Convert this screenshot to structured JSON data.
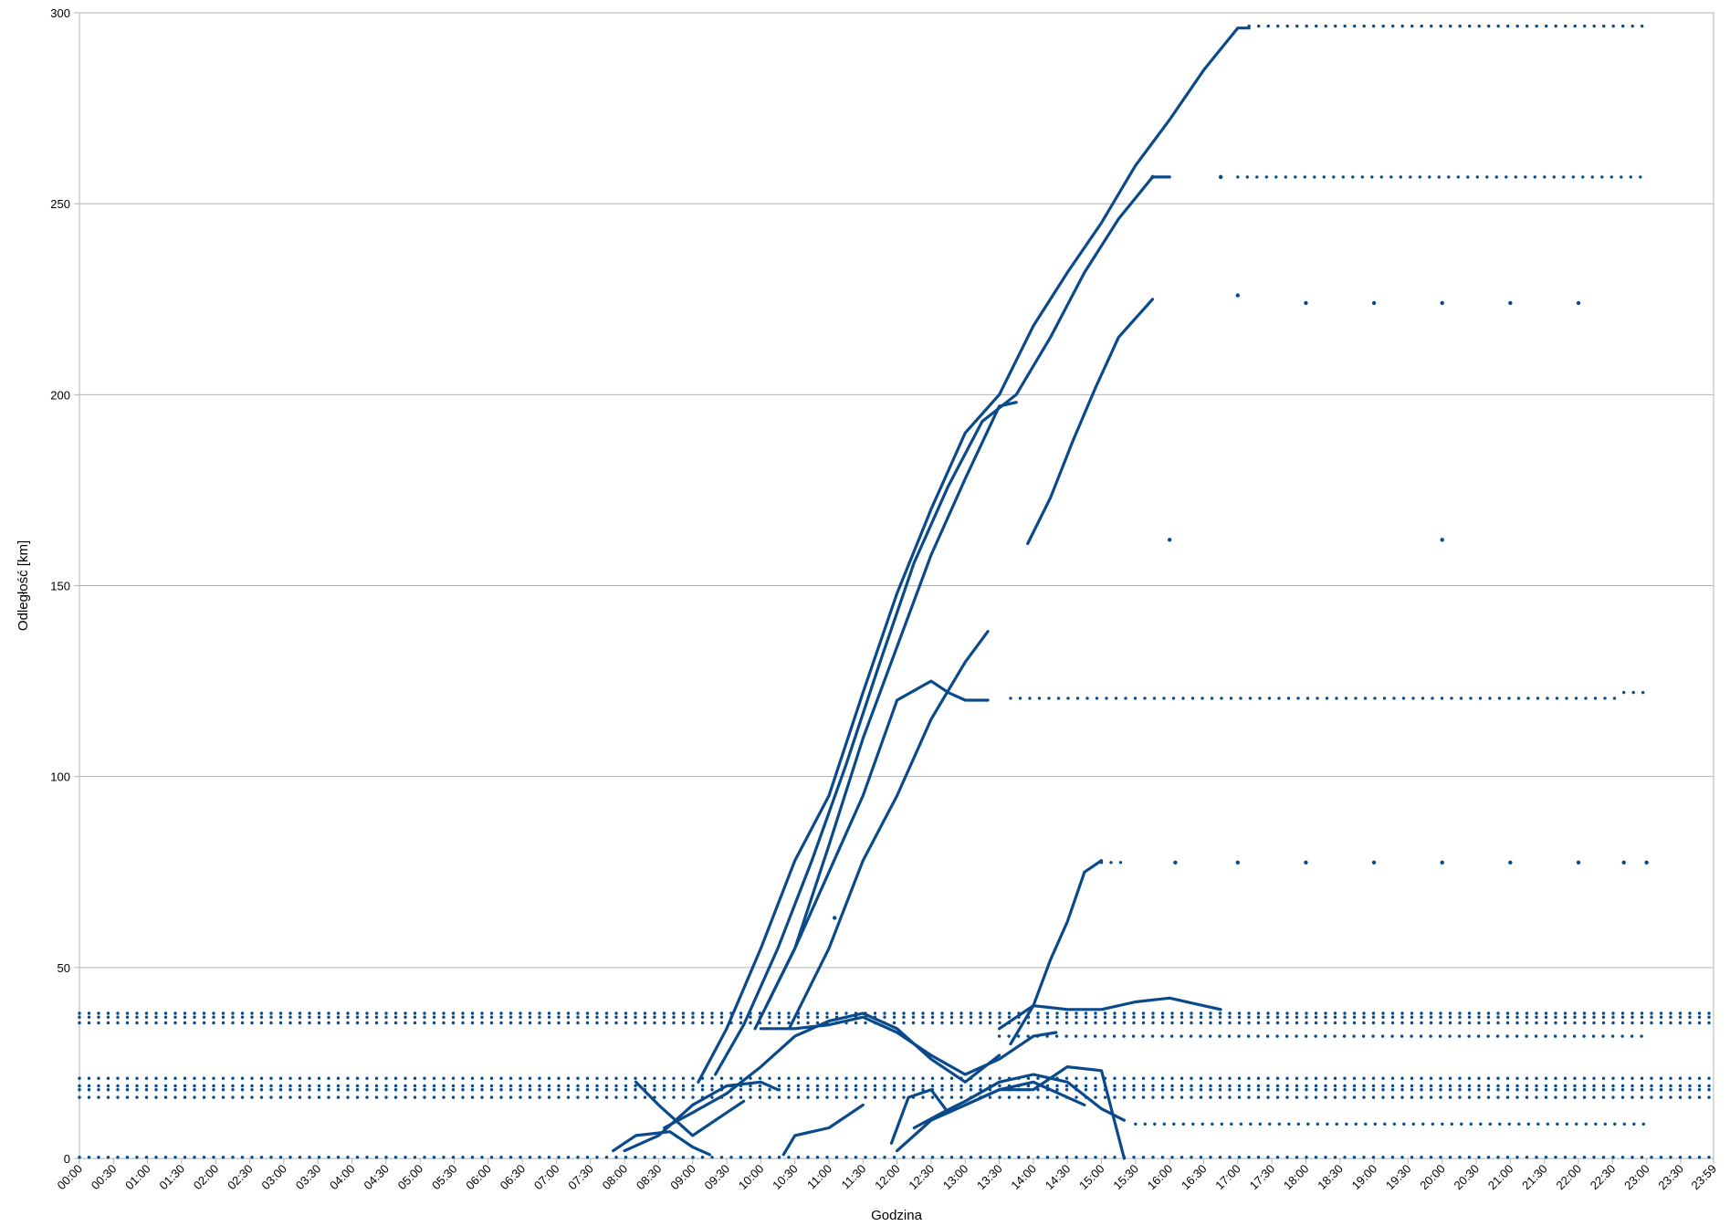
{
  "chart_data": {
    "type": "scatter",
    "xlabel": "Godzina",
    "ylabel": "Odległość [km]",
    "xlim": [
      0,
      1439
    ],
    "ylim": [
      0,
      300
    ],
    "y_ticks": [
      0,
      50,
      100,
      150,
      200,
      250,
      300
    ],
    "x_tick_labels": [
      "00:00",
      "00:30",
      "01:00",
      "01:30",
      "02:00",
      "02:30",
      "03:00",
      "03:30",
      "04:00",
      "04:30",
      "05:00",
      "05:30",
      "06:00",
      "06:30",
      "07:00",
      "07:30",
      "08:00",
      "08:30",
      "09:00",
      "09:30",
      "10:00",
      "10:30",
      "11:00",
      "11:30",
      "12:00",
      "12:30",
      "13:00",
      "13:30",
      "14:00",
      "14:30",
      "15:00",
      "15:30",
      "16:00",
      "16:30",
      "17:00",
      "17:30",
      "18:00",
      "18:30",
      "19:00",
      "19:30",
      "20:00",
      "20:30",
      "21:00",
      "21:30",
      "22:00",
      "22:30",
      "23:00",
      "23:30",
      "23:59"
    ],
    "grid": true,
    "legend": "none",
    "color": "#0a4a8a",
    "series": [
      {
        "points": [
          [
            "09:05",
            20
          ],
          [
            "09:30",
            34
          ],
          [
            "10:00",
            55
          ],
          [
            "10:30",
            78
          ],
          [
            "11:00",
            95
          ],
          [
            "11:30",
            122
          ],
          [
            "12:00",
            148
          ],
          [
            "12:30",
            170
          ],
          [
            "13:00",
            190
          ],
          [
            "13:30",
            200
          ],
          [
            "14:00",
            218
          ],
          [
            "14:30",
            232
          ],
          [
            "15:00",
            245
          ],
          [
            "15:30",
            260
          ],
          [
            "16:00",
            272
          ],
          [
            "16:30",
            285
          ],
          [
            "17:00",
            296
          ],
          [
            "17:10",
            296
          ]
        ]
      },
      {
        "points": [
          [
            "09:20",
            22
          ],
          [
            "09:45",
            35
          ],
          [
            "10:15",
            55
          ],
          [
            "10:45",
            78
          ],
          [
            "11:15",
            103
          ],
          [
            "11:45",
            130
          ],
          [
            "12:15",
            156
          ],
          [
            "12:45",
            176
          ],
          [
            "13:15",
            193
          ],
          [
            "13:45",
            200
          ],
          [
            "14:15",
            215
          ],
          [
            "14:45",
            232
          ],
          [
            "15:15",
            246
          ],
          [
            "15:45",
            257
          ],
          [
            "16:00",
            257
          ]
        ]
      },
      {
        "points": [
          [
            "09:55",
            34
          ],
          [
            "10:30",
            55
          ],
          [
            "11:00",
            82
          ],
          [
            "11:30",
            110
          ],
          [
            "12:00",
            134
          ],
          [
            "12:30",
            158
          ],
          [
            "13:00",
            178
          ],
          [
            "13:30",
            197
          ],
          [
            "13:45",
            198
          ]
        ]
      },
      {
        "points": [
          [
            "10:05",
            40
          ],
          [
            "10:30",
            55
          ],
          [
            "11:00",
            75
          ],
          [
            "11:30",
            95
          ],
          [
            "12:00",
            120
          ],
          [
            "12:30",
            125
          ],
          [
            "12:45",
            122
          ],
          [
            "13:00",
            120
          ],
          [
            "13:20",
            120
          ]
        ]
      },
      {
        "points": [
          [
            "10:25",
            34
          ],
          [
            "11:00",
            55
          ],
          [
            "11:30",
            78
          ],
          [
            "12:00",
            95
          ],
          [
            "12:30",
            115
          ],
          [
            "13:00",
            130
          ],
          [
            "13:20",
            138
          ]
        ]
      },
      {
        "points": [
          [
            "13:55",
            161
          ],
          [
            "14:15",
            173
          ],
          [
            "14:35",
            188
          ],
          [
            "14:55",
            202
          ],
          [
            "15:15",
            215
          ],
          [
            "15:30",
            220
          ],
          [
            "15:45",
            225
          ]
        ]
      },
      {
        "points": [
          [
            "13:40",
            30
          ],
          [
            "14:00",
            40
          ],
          [
            "14:15",
            52
          ],
          [
            "14:30",
            62
          ],
          [
            "14:45",
            75
          ],
          [
            "15:00",
            78
          ]
        ]
      },
      {
        "points": [
          [
            "08:35",
            8
          ],
          [
            "09:00",
            12
          ],
          [
            "09:30",
            17
          ],
          [
            "10:00",
            24
          ],
          [
            "10:30",
            32
          ],
          [
            "11:00",
            36
          ],
          [
            "11:30",
            38
          ],
          [
            "12:00",
            34
          ],
          [
            "12:30",
            26
          ],
          [
            "13:00",
            20
          ],
          [
            "13:30",
            27
          ]
        ]
      },
      {
        "points": [
          [
            "10:00",
            34
          ],
          [
            "10:30",
            34
          ],
          [
            "11:00",
            35
          ],
          [
            "11:30",
            37
          ],
          [
            "12:00",
            33
          ],
          [
            "12:30",
            27
          ],
          [
            "13:00",
            22
          ],
          [
            "13:30",
            26
          ],
          [
            "14:00",
            32
          ],
          [
            "14:20",
            33
          ]
        ]
      },
      {
        "points": [
          [
            "13:30",
            34
          ],
          [
            "14:00",
            40
          ],
          [
            "14:30",
            39
          ],
          [
            "15:00",
            39
          ],
          [
            "15:30",
            41
          ],
          [
            "16:00",
            42
          ],
          [
            "16:30",
            40
          ],
          [
            "16:45",
            39
          ]
        ]
      },
      {
        "points": [
          [
            "08:00",
            2
          ],
          [
            "08:30",
            6
          ],
          [
            "09:00",
            14
          ],
          [
            "09:30",
            19
          ],
          [
            "10:00",
            20
          ],
          [
            "10:15",
            18
          ]
        ]
      },
      {
        "points": [
          [
            "07:50",
            2
          ],
          [
            "08:10",
            6
          ],
          [
            "08:40",
            7
          ],
          [
            "09:00",
            3
          ],
          [
            "09:15",
            1
          ]
        ]
      },
      {
        "points": [
          [
            "11:55",
            4
          ],
          [
            "12:10",
            16
          ],
          [
            "12:30",
            18
          ],
          [
            "12:45",
            12
          ],
          [
            "13:00",
            14
          ],
          [
            "13:30",
            18
          ],
          [
            "14:00",
            20
          ],
          [
            "14:30",
            16
          ],
          [
            "14:45",
            14
          ]
        ]
      },
      {
        "points": [
          [
            "12:15",
            8
          ],
          [
            "12:40",
            12
          ],
          [
            "13:00",
            15
          ],
          [
            "13:30",
            20
          ],
          [
            "14:00",
            22
          ],
          [
            "14:30",
            20
          ],
          [
            "15:00",
            13
          ],
          [
            "15:20",
            10
          ]
        ]
      },
      {
        "points": [
          [
            "12:00",
            2
          ],
          [
            "12:30",
            10
          ],
          [
            "13:00",
            14
          ],
          [
            "13:30",
            18
          ],
          [
            "14:00",
            18
          ],
          [
            "14:30",
            24
          ],
          [
            "15:00",
            23
          ],
          [
            "15:20",
            0
          ]
        ]
      },
      {
        "points": [
          [
            "08:10",
            20
          ],
          [
            "08:30",
            14
          ],
          [
            "09:00",
            6
          ],
          [
            "09:30",
            12
          ],
          [
            "09:45",
            15
          ]
        ]
      },
      {
        "points": [
          [
            "10:20",
            1
          ],
          [
            "10:30",
            6
          ],
          [
            "11:00",
            8
          ],
          [
            "11:20",
            12
          ],
          [
            "11:30",
            14
          ]
        ]
      }
    ],
    "dotted_series": [
      {
        "y": 38,
        "from": "00:00",
        "to": "23:59"
      },
      {
        "y": 37,
        "from": "00:00",
        "to": "23:59"
      },
      {
        "y": 35.5,
        "from": "00:00",
        "to": "23:59"
      },
      {
        "y": 21,
        "from": "00:00",
        "to": "23:59"
      },
      {
        "y": 19,
        "from": "00:00",
        "to": "23:59"
      },
      {
        "y": 18,
        "from": "00:00",
        "to": "23:59"
      },
      {
        "y": 16,
        "from": "00:00",
        "to": "23:59"
      },
      {
        "y": 0.3,
        "from": "00:00",
        "to": "23:59"
      },
      {
        "y": 32,
        "from": "13:30",
        "to": "23:00"
      },
      {
        "y": 9,
        "from": "15:30",
        "to": "23:00"
      },
      {
        "y": 120.5,
        "from": "13:40",
        "to": "22:40"
      },
      {
        "y": 122,
        "from": "22:40",
        "to": "23:00"
      },
      {
        "y": 296.5,
        "from": "17:10",
        "to": "23:00"
      },
      {
        "y": 257,
        "from": "17:00",
        "to": "23:00"
      },
      {
        "y": 77.5,
        "from": "15:00",
        "to": "15:20"
      }
    ],
    "isolated_points": [
      [
        "11:05",
        63
      ],
      [
        "16:00",
        162
      ],
      [
        "20:00",
        162
      ],
      [
        "17:00",
        226
      ],
      [
        "18:00",
        224
      ],
      [
        "19:00",
        224
      ],
      [
        "20:00",
        224
      ],
      [
        "21:00",
        224
      ],
      [
        "22:00",
        224
      ],
      [
        "16:05",
        77.5
      ],
      [
        "17:00",
        77.5
      ],
      [
        "18:00",
        77.5
      ],
      [
        "19:00",
        77.5
      ],
      [
        "20:00",
        77.5
      ],
      [
        "21:00",
        77.5
      ],
      [
        "22:00",
        77.5
      ],
      [
        "22:40",
        77.5
      ],
      [
        "23:00",
        77.5
      ],
      [
        "16:45",
        257
      ],
      [
        "15:45",
        257
      ]
    ]
  }
}
